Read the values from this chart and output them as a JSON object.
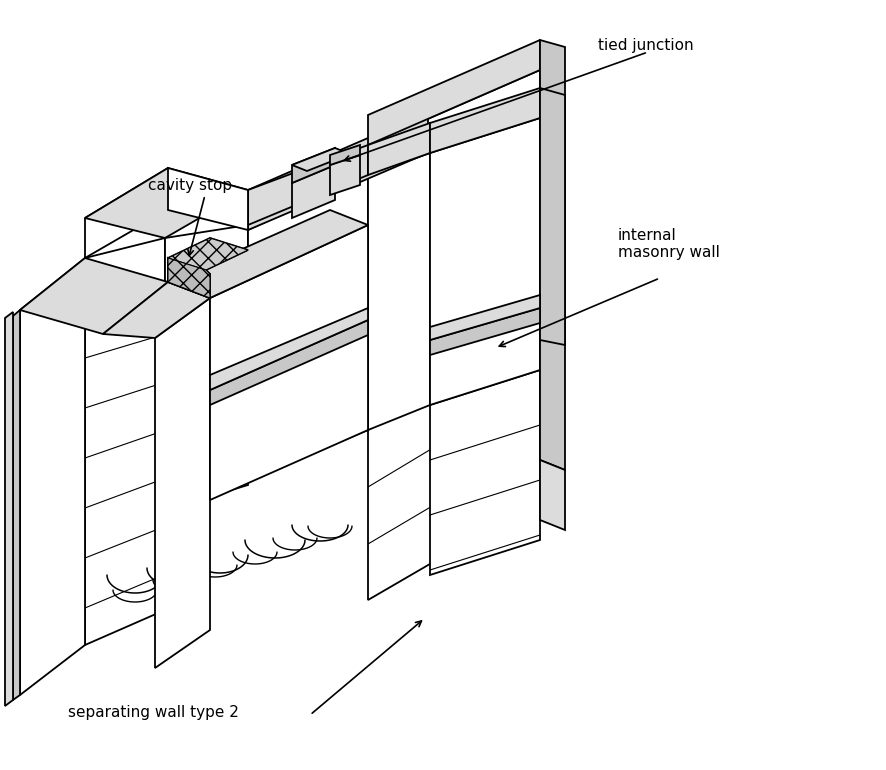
{
  "labels": {
    "tied_junction": "tied junction",
    "cavity_stop": "cavity stop",
    "internal_masonry_wall": "internal\nmasonry wall",
    "separating_wall_type2": "separating wall type 2"
  },
  "bg_color": "#ffffff",
  "line_color": "#000000",
  "fill_light": "#f2f2f2",
  "fill_medium": "#dcdcdc",
  "fill_dark": "#c8c8c8",
  "fill_white": "#ffffff"
}
